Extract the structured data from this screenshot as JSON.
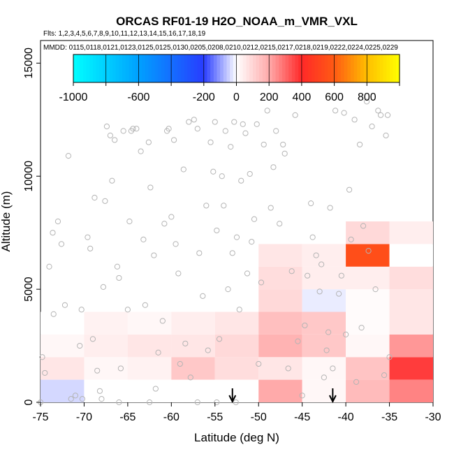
{
  "chart_data": {
    "type": "heatmap",
    "title": "ORCAS RF01-19 H2O_NOAA_m_VMR_VXL",
    "flights_text": "Flts: 1,2,3,4,5,6,7,8,9,10,11,12,13,14,15,16,17,18,19",
    "dates_text": "MMDD: 0115,0118,0121,0123,0125,0125,0130,0205,0208,0210,0212,0215,0217,0218,0219,0222,0224,0225,0229",
    "xlabel": "Latitude (deg N)",
    "ylabel": "Altitude (m)",
    "xlim": [
      -75,
      -30
    ],
    "ylim": [
      0,
      16000
    ],
    "x_ticks": [
      -75,
      -70,
      -65,
      -60,
      -55,
      -50,
      -45,
      -40,
      -35,
      -30
    ],
    "y_ticks": [
      0,
      5000,
      10000,
      15000
    ],
    "colorbar": {
      "range": [
        -1000,
        1000
      ],
      "ticks": [
        -1000,
        -600,
        -200,
        0,
        200,
        400,
        600,
        800
      ],
      "tick_labels": [
        "-1000",
        "-600",
        "-200",
        "0",
        "200",
        "400",
        "600",
        "800"
      ]
    },
    "bins": {
      "x_edges": [
        -75,
        -70,
        -65,
        -60,
        -55,
        -50,
        -45,
        -40,
        -35
      ],
      "y_edges": [
        0,
        1000,
        2000,
        3000,
        4000,
        5000,
        6000,
        7000,
        8000
      ]
    },
    "cells": [
      {
        "lat": -75,
        "alt": 0,
        "v": -40
      },
      {
        "lat": -70,
        "alt": 0,
        "v": 0
      },
      {
        "lat": -65,
        "alt": 0,
        "v": 0
      },
      {
        "lat": -60,
        "alt": 0,
        "v": 0
      },
      {
        "lat": -55,
        "alt": 0,
        "v": 0
      },
      {
        "lat": -50,
        "alt": 0,
        "v": 200
      },
      {
        "lat": -45,
        "alt": 0,
        "v": 20
      },
      {
        "lat": -40,
        "alt": 0,
        "v": 160
      },
      {
        "lat": -35,
        "alt": 0,
        "v": 260
      },
      {
        "lat": -75,
        "alt": 1000,
        "v": 60
      },
      {
        "lat": -70,
        "alt": 1000,
        "v": 20
      },
      {
        "lat": -65,
        "alt": 1000,
        "v": 30
      },
      {
        "lat": -60,
        "alt": 1000,
        "v": 130
      },
      {
        "lat": -55,
        "alt": 1000,
        "v": 80
      },
      {
        "lat": -50,
        "alt": 1000,
        "v": 60
      },
      {
        "lat": -45,
        "alt": 1000,
        "v": 20
      },
      {
        "lat": -40,
        "alt": 1000,
        "v": 140
      },
      {
        "lat": -35,
        "alt": 1000,
        "v": 370
      },
      {
        "lat": -75,
        "alt": 2000,
        "v": 20
      },
      {
        "lat": -70,
        "alt": 2000,
        "v": 40
      },
      {
        "lat": -65,
        "alt": 2000,
        "v": 60
      },
      {
        "lat": -60,
        "alt": 2000,
        "v": 60
      },
      {
        "lat": -55,
        "alt": 2000,
        "v": 90
      },
      {
        "lat": -50,
        "alt": 2000,
        "v": 180
      },
      {
        "lat": -45,
        "alt": 2000,
        "v": 130
      },
      {
        "lat": -40,
        "alt": 2000,
        "v": 20
      },
      {
        "lat": -35,
        "alt": 2000,
        "v": 230
      },
      {
        "lat": -75,
        "alt": 3000,
        "v": 0
      },
      {
        "lat": -70,
        "alt": 3000,
        "v": 30
      },
      {
        "lat": -65,
        "alt": 3000,
        "v": 20
      },
      {
        "lat": -60,
        "alt": 3000,
        "v": 40
      },
      {
        "lat": -55,
        "alt": 3000,
        "v": 60
      },
      {
        "lat": -50,
        "alt": 3000,
        "v": 150
      },
      {
        "lat": -45,
        "alt": 3000,
        "v": 130
      },
      {
        "lat": -40,
        "alt": 3000,
        "v": 10
      },
      {
        "lat": -35,
        "alt": 3000,
        "v": 60
      },
      {
        "lat": -50,
        "alt": 4000,
        "v": 90
      },
      {
        "lat": -45,
        "alt": 4000,
        "v": -20
      },
      {
        "lat": -40,
        "alt": 4000,
        "v": 10
      },
      {
        "lat": -35,
        "alt": 4000,
        "v": 60
      },
      {
        "lat": -50,
        "alt": 5000,
        "v": 80
      },
      {
        "lat": -45,
        "alt": 5000,
        "v": 40
      },
      {
        "lat": -40,
        "alt": 5000,
        "v": 40
      },
      {
        "lat": -35,
        "alt": 5000,
        "v": 80
      },
      {
        "lat": -50,
        "alt": 6000,
        "v": 60
      },
      {
        "lat": -45,
        "alt": 6000,
        "v": 40
      },
      {
        "lat": -40,
        "alt": 6000,
        "v": 550
      },
      {
        "lat": -35,
        "alt": 6000,
        "v": 0
      },
      {
        "lat": -40,
        "alt": 7000,
        "v": 90
      },
      {
        "lat": -35,
        "alt": 7000,
        "v": 40
      }
    ],
    "markers": {
      "type": "downward arrows",
      "latitudes": [
        -53,
        -41.5
      ]
    },
    "samples": {
      "style": "grey open circles",
      "points": [
        [
          -75,
          0
        ],
        [
          -74.8,
          2000
        ],
        [
          -74.5,
          1300
        ],
        [
          -74,
          6000
        ],
        [
          -73.6,
          7500
        ],
        [
          -73.5,
          3900
        ],
        [
          -73,
          8000
        ],
        [
          -72.6,
          7000
        ],
        [
          -72.2,
          4300
        ],
        [
          -71.8,
          10900
        ],
        [
          -71.5,
          150
        ],
        [
          -71,
          300
        ],
        [
          -70.5,
          2500
        ],
        [
          -70.3,
          4100
        ],
        [
          -69.6,
          7300
        ],
        [
          -69.3,
          6800
        ],
        [
          -69,
          2800
        ],
        [
          -68.8,
          9050
        ],
        [
          -68.5,
          1400
        ],
        [
          -68.2,
          500
        ],
        [
          -67.8,
          5100
        ],
        [
          -67.6,
          8900
        ],
        [
          -67.4,
          12200
        ],
        [
          -67,
          11800
        ],
        [
          -66.8,
          9800
        ],
        [
          -66.5,
          11600
        ],
        [
          -66.2,
          6000
        ],
        [
          -66,
          5500
        ],
        [
          -65.8,
          1500
        ],
        [
          -65.5,
          12000
        ],
        [
          -65,
          4100
        ],
        [
          -64.8,
          8000
        ],
        [
          -64.6,
          12000
        ],
        [
          -64.4,
          12100
        ],
        [
          -64,
          12100
        ],
        [
          -63.5,
          11100
        ],
        [
          -63.2,
          7200
        ],
        [
          -63,
          4300
        ],
        [
          -62.6,
          11500
        ],
        [
          -62.4,
          9500
        ],
        [
          -62,
          6500
        ],
        [
          -61.8,
          600
        ],
        [
          -61.5,
          2200
        ],
        [
          -61,
          3600
        ],
        [
          -60.8,
          7900
        ],
        [
          -60.5,
          12000
        ],
        [
          -60.3,
          12100
        ],
        [
          -60,
          8200
        ],
        [
          -59.7,
          11600
        ],
        [
          -59.5,
          7000
        ],
        [
          -59.2,
          5700
        ],
        [
          -59,
          1700
        ],
        [
          -58.6,
          10300
        ],
        [
          -58.4,
          2600
        ],
        [
          -58,
          12400
        ],
        [
          -57.8,
          1100
        ],
        [
          -57.4,
          12500
        ],
        [
          -57,
          12100
        ],
        [
          -56.8,
          6600
        ],
        [
          -56.4,
          4700
        ],
        [
          -56,
          8700
        ],
        [
          -55.8,
          2300
        ],
        [
          -55.5,
          11500
        ],
        [
          -55.2,
          10200
        ],
        [
          -55,
          12400
        ],
        [
          -54.8,
          7600
        ],
        [
          -54.5,
          2800
        ],
        [
          -54.2,
          10000
        ],
        [
          -54,
          8700
        ],
        [
          -53.8,
          12000
        ],
        [
          -53.5,
          5000
        ],
        [
          -53.2,
          11300
        ],
        [
          -53,
          6600
        ],
        [
          -52.8,
          12400
        ],
        [
          -52.5,
          7300
        ],
        [
          -52.2,
          4100
        ],
        [
          -52,
          9800
        ],
        [
          -51.8,
          12300
        ],
        [
          -51.5,
          11900
        ],
        [
          -51.3,
          5700
        ],
        [
          -51,
          10100
        ],
        [
          -50.8,
          7100
        ],
        [
          -50.5,
          8100
        ],
        [
          -50.2,
          12300
        ],
        [
          -50,
          1700
        ],
        [
          -49.7,
          5300
        ],
        [
          -49.4,
          11400
        ],
        [
          -49,
          12900
        ],
        [
          -48.6,
          8600
        ],
        [
          -48.3,
          10400
        ],
        [
          -48,
          12000
        ],
        [
          -47.6,
          7900
        ],
        [
          -47.2,
          11400
        ],
        [
          -47,
          11000
        ],
        [
          -46.6,
          1500
        ],
        [
          -46.2,
          5800
        ],
        [
          -45.8,
          12700
        ],
        [
          -45.5,
          2700
        ],
        [
          -45,
          300
        ],
        [
          -44.7,
          3400
        ],
        [
          -44.4,
          5600
        ],
        [
          -44,
          8800
        ],
        [
          -43.8,
          7300
        ],
        [
          -43.4,
          6500
        ],
        [
          -43,
          4900
        ],
        [
          -42.8,
          6100
        ],
        [
          -42.5,
          1100
        ],
        [
          -42.2,
          2300
        ],
        [
          -42,
          3100
        ],
        [
          -41.8,
          8600
        ],
        [
          -41.5,
          1500
        ],
        [
          -41.2,
          12900
        ],
        [
          -40.8,
          4800
        ],
        [
          -40.5,
          5600
        ],
        [
          -40.2,
          12800
        ],
        [
          -40,
          3000
        ],
        [
          -39.6,
          9400
        ],
        [
          -39.4,
          7200
        ],
        [
          -39,
          12500
        ],
        [
          -38.8,
          900
        ],
        [
          -38.4,
          11400
        ],
        [
          -38.2,
          3300
        ],
        [
          -38,
          7800
        ],
        [
          -37.6,
          13300
        ],
        [
          -37.4,
          6700
        ],
        [
          -37,
          12200
        ],
        [
          -36.6,
          5000
        ],
        [
          -36.3,
          12900
        ],
        [
          -36,
          12700
        ],
        [
          -35.6,
          1200
        ],
        [
          -35.4,
          11800
        ],
        [
          -35.2,
          12700
        ],
        [
          -35,
          2000
        ],
        [
          -52.6,
          0
        ],
        [
          -54.8,
          0
        ],
        [
          -57,
          0
        ],
        [
          -62.5,
          0
        ],
        [
          -66,
          0
        ],
        [
          -68,
          150
        ],
        [
          -70.2,
          150
        ]
      ]
    }
  }
}
